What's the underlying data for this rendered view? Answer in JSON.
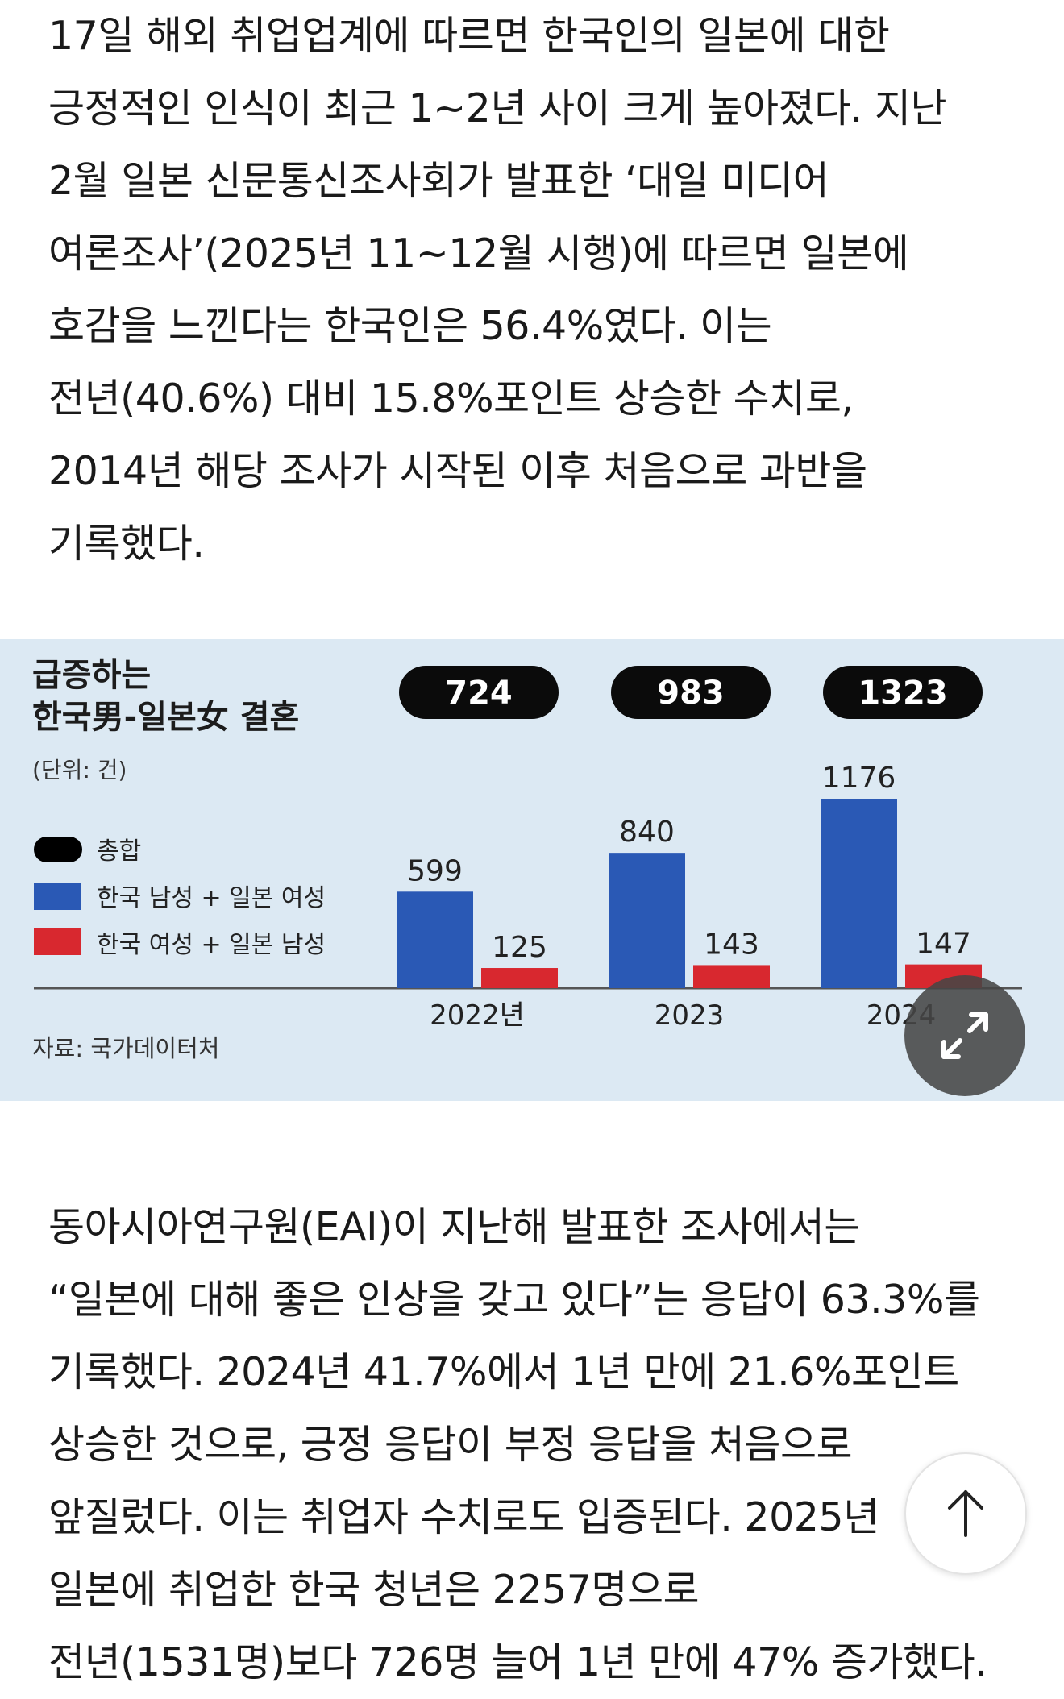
{
  "article": {
    "paragraph1": [
      "17일 해외 취업업계에 따르면 한국인의 일본에 대한",
      "긍정적인 인식이 최근 1~2년 사이 크게 높아졌다. 지난",
      "2월 일본 신문통신조사회가 발표한 ‘대일 미디어",
      "여론조사’(2025년 11~12월 시행)에 따르면 일본에",
      "호감을 느낀다는 한국인은 56.4%였다. 이는",
      "전년(40.6%) 대비 15.8%포인트 상승한 수치로,",
      "2014년 해당 조사가 시작된 이후 처음으로 과반을",
      "기록했다."
    ],
    "paragraph2": [
      "동아시아연구원(EAI)이 지난해 발표한 조사에서는",
      "“일본에 대해 좋은 인상을 갖고 있다”는 응답이 63.3%를",
      "기록했다. 2024년 41.7%에서 1년 만에 21.6%포인트",
      "상승한 것으로, 긍정 응답이 부정 응답을 처음으로",
      "앞질렀다. 이는 취업자 수치로도 입증된다. 2025년",
      "일본에 취업한 한국 청년은 2257명으로",
      "전년(1531명)보다 726명 늘어 1년 만에 47% 증가했다."
    ]
  },
  "chart_data": {
    "type": "bar",
    "title": [
      "급증하는",
      "한국男-일본女 결혼"
    ],
    "unit_label": "(단위: 건)",
    "source": "자료: 국가데이터처",
    "categories": [
      "2022년",
      "2023",
      "2024"
    ],
    "totals": [
      724,
      983,
      1323
    ],
    "series": [
      {
        "name": "한국 남성 + 일본 여성",
        "values": [
          599,
          840,
          1176
        ],
        "color": "#2a59b5"
      },
      {
        "name": "한국 여성 + 일본 남성",
        "values": [
          125,
          143,
          147
        ],
        "color": "#d8282f"
      }
    ],
    "legend": {
      "total_label": "총합",
      "total_color": "#000000",
      "placement": "left"
    },
    "ylim": [
      0,
      1300
    ],
    "grid": false
  },
  "icons": {
    "expand": "expand-arrows-icon",
    "scroll_top": "arrow-up-icon"
  }
}
